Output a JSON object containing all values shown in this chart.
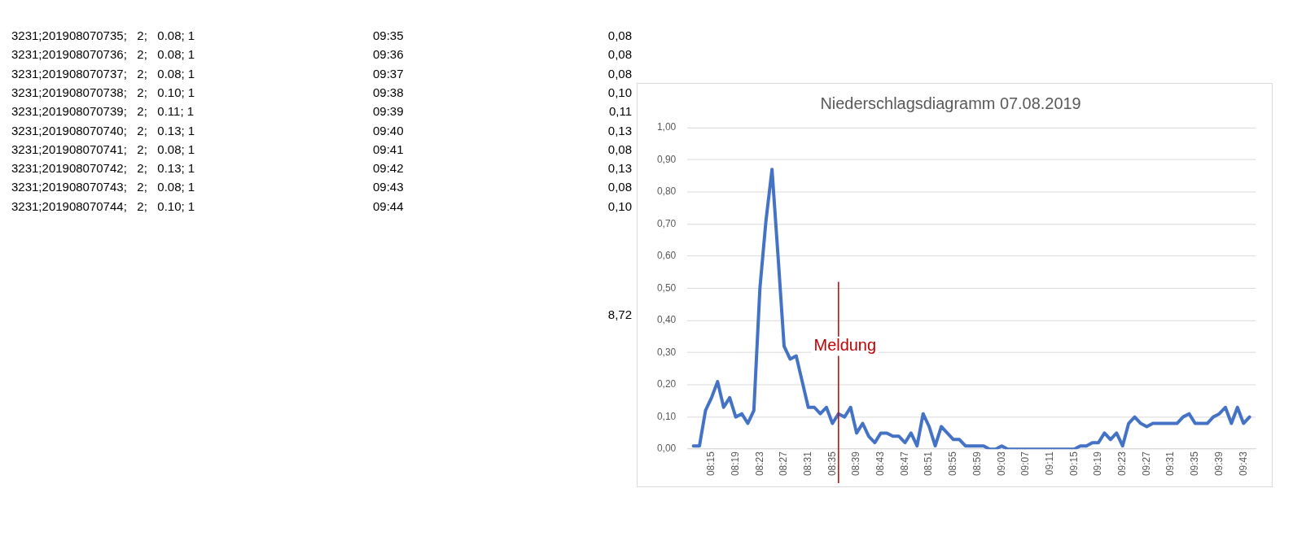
{
  "chart_data": {
    "type": "line",
    "title": "Niederschlagsdiagramm 07.08.2019",
    "x": [
      "2019-08-07T08:12",
      "2019-08-07T08:13",
      "2019-08-07T08:14",
      "2019-08-07T08:15",
      "2019-08-07T08:16",
      "2019-08-07T08:17",
      "2019-08-07T08:18",
      "2019-08-07T08:19",
      "2019-08-07T08:20",
      "2019-08-07T08:21",
      "2019-08-07T08:22",
      "2019-08-07T08:23",
      "2019-08-07T08:24",
      "2019-08-07T08:25",
      "2019-08-07T08:26",
      "2019-08-07T08:27",
      "2019-08-07T08:28",
      "2019-08-07T08:29",
      "2019-08-07T08:30",
      "2019-08-07T08:31",
      "2019-08-07T08:32",
      "2019-08-07T08:33",
      "2019-08-07T08:34",
      "2019-08-07T08:35",
      "2019-08-07T08:36",
      "2019-08-07T08:37",
      "2019-08-07T08:38",
      "2019-08-07T08:39",
      "2019-08-07T08:40",
      "2019-08-07T08:41",
      "2019-08-07T08:42",
      "2019-08-07T08:43",
      "2019-08-07T08:44",
      "2019-08-07T08:45",
      "2019-08-07T08:46",
      "2019-08-07T08:47",
      "2019-08-07T08:48",
      "2019-08-07T08:49",
      "2019-08-07T08:50",
      "2019-08-07T08:51",
      "2019-08-07T08:52",
      "2019-08-07T08:53",
      "2019-08-07T08:54",
      "2019-08-07T08:55",
      "2019-08-07T08:56",
      "2019-08-07T08:57",
      "2019-08-07T08:58",
      "2019-08-07T08:59",
      "2019-08-07T09:00",
      "2019-08-07T09:01",
      "2019-08-07T09:02",
      "2019-08-07T09:03",
      "2019-08-07T09:04",
      "2019-08-07T09:05",
      "2019-08-07T09:06",
      "2019-08-07T09:07",
      "2019-08-07T09:08",
      "2019-08-07T09:09",
      "2019-08-07T09:10",
      "2019-08-07T09:11",
      "2019-08-07T09:12",
      "2019-08-07T09:13",
      "2019-08-07T09:14",
      "2019-08-07T09:15",
      "2019-08-07T09:16",
      "2019-08-07T09:17",
      "2019-08-07T09:18",
      "2019-08-07T09:19",
      "2019-08-07T09:20",
      "2019-08-07T09:21",
      "2019-08-07T09:22",
      "2019-08-07T09:23",
      "2019-08-07T09:24",
      "2019-08-07T09:25",
      "2019-08-07T09:26",
      "2019-08-07T09:27",
      "2019-08-07T09:28",
      "2019-08-07T09:29",
      "2019-08-07T09:30",
      "2019-08-07T09:31",
      "2019-08-07T09:32",
      "2019-08-07T09:33",
      "2019-08-07T09:34",
      "2019-08-07T09:35",
      "2019-08-07T09:36",
      "2019-08-07T09:37",
      "2019-08-07T09:38",
      "2019-08-07T09:39",
      "2019-08-07T09:40",
      "2019-08-07T09:41",
      "2019-08-07T09:42",
      "2019-08-07T09:43",
      "2019-08-07T09:44"
    ],
    "series": [
      {
        "color": "#4472c4",
        "values": [
          0.01,
          0.01,
          0.12,
          0.16,
          0.21,
          0.13,
          0.16,
          0.1,
          0.11,
          0.08,
          0.12,
          0.5,
          0.71,
          0.87,
          0.6,
          0.32,
          0.28,
          0.29,
          0.21,
          0.13,
          0.13,
          0.11,
          0.13,
          0.08,
          0.11,
          0.1,
          0.13,
          0.05,
          0.08,
          0.04,
          0.02,
          0.05,
          0.05,
          0.04,
          0.04,
          0.02,
          0.05,
          0.01,
          0.11,
          0.07,
          0.01,
          0.07,
          0.05,
          0.03,
          0.03,
          0.01,
          0.01,
          0.01,
          0.01,
          0,
          0,
          0.01,
          0,
          0,
          0,
          0,
          0,
          0,
          0,
          0,
          0,
          0,
          0,
          0,
          0.01,
          0.01,
          0.02,
          0.02,
          0.05,
          0.03,
          0.05,
          0.01,
          0.08,
          0.1,
          0.08,
          0.07,
          0.08,
          0.08,
          0.08,
          0.08,
          0.08,
          0.1,
          0.11,
          0.08,
          0.08,
          0.08,
          0.1,
          0.11,
          0.13,
          0.08,
          0.13,
          0.08,
          0.1
        ]
      }
    ],
    "xlim": [
      "2019-08-07T08:11",
      "2019-08-07T09:45"
    ],
    "xticks": [
      {
        "value": "2019-08-07T08:15",
        "label": "08:15"
      },
      {
        "value": "2019-08-07T08:19",
        "label": "08:19"
      },
      {
        "value": "2019-08-07T08:23",
        "label": "08:23"
      },
      {
        "value": "2019-08-07T08:27",
        "label": "08:27"
      },
      {
        "value": "2019-08-07T08:31",
        "label": "08:31"
      },
      {
        "value": "2019-08-07T08:35",
        "label": "08:35"
      },
      {
        "value": "2019-08-07T08:39",
        "label": "08:39"
      },
      {
        "value": "2019-08-07T08:43",
        "label": "08:43"
      },
      {
        "value": "2019-08-07T08:47",
        "label": "08:47"
      },
      {
        "value": "2019-08-07T08:51",
        "label": "08:51"
      },
      {
        "value": "2019-08-07T08:55",
        "label": "08:55"
      },
      {
        "value": "2019-08-07T08:59",
        "label": "08:59"
      },
      {
        "value": "2019-08-07T09:03",
        "label": "09:03"
      },
      {
        "value": "2019-08-07T09:07",
        "label": "09:07"
      },
      {
        "value": "2019-08-07T09:11",
        "label": "09:11"
      },
      {
        "value": "2019-08-07T09:15",
        "label": "09:15"
      },
      {
        "value": "2019-08-07T09:19",
        "label": "09:19"
      },
      {
        "value": "2019-08-07T09:23",
        "label": "09:23"
      },
      {
        "value": "2019-08-07T09:27",
        "label": "09:27"
      },
      {
        "value": "2019-08-07T09:31",
        "label": "09:31"
      },
      {
        "value": "2019-08-07T09:35",
        "label": "09:35"
      },
      {
        "value": "2019-08-07T09:39",
        "label": "09:39"
      },
      {
        "value": "2019-08-07T09:43",
        "label": "09:43"
      }
    ],
    "ylim": [
      0,
      1
    ],
    "yticks": [
      {
        "value": 0,
        "label": "0,00"
      },
      {
        "value": 0.1,
        "label": "0,10"
      },
      {
        "value": 0.2,
        "label": "0,20"
      },
      {
        "value": 0.3,
        "label": "0,30"
      },
      {
        "value": 0.4,
        "label": "0,40"
      },
      {
        "value": 0.5,
        "label": "0,50"
      },
      {
        "value": 0.6,
        "label": "0,60"
      },
      {
        "value": 0.7,
        "label": "0,70"
      },
      {
        "value": 0.8,
        "label": "0,80"
      },
      {
        "value": 0.9,
        "label": "0,90"
      },
      {
        "value": 1,
        "label": "1,00"
      }
    ],
    "grid": "y",
    "marker": "none",
    "line_style": "solid",
    "ref_lines": [
      {
        "axis": "x",
        "value": "2019-08-07T08:36",
        "label": "Meldung",
        "color": "#c00000"
      }
    ],
    "annotations": [
      "3231;201908070735;   2;   0.08; 1",
      "09:35",
      "0,08",
      "3231;201908070736;   2;   0.08; 1",
      "09:36",
      "0,08",
      "3231;201908070737;   2;   0.08; 1",
      "09:37",
      "0,08",
      "3231;201908070738;   2;   0.10; 1",
      "09:38",
      "0,10",
      "3231;201908070739;   2;   0.11; 1",
      "09:39",
      "0,11",
      "3231;201908070740;   2;   0.13; 1",
      "09:40",
      "0,13",
      "3231;201908070741;   2;   0.08; 1",
      "09:41",
      "0,08",
      "3231;201908070742;   2;   0.13; 1",
      "09:42",
      "0,13",
      "3231;201908070743;   2;   0.08; 1",
      "09:43",
      "0,08",
      "3231;201908070744;   2;   0.10; 1",
      "09:44",
      "0,10",
      "8,72"
    ]
  }
}
